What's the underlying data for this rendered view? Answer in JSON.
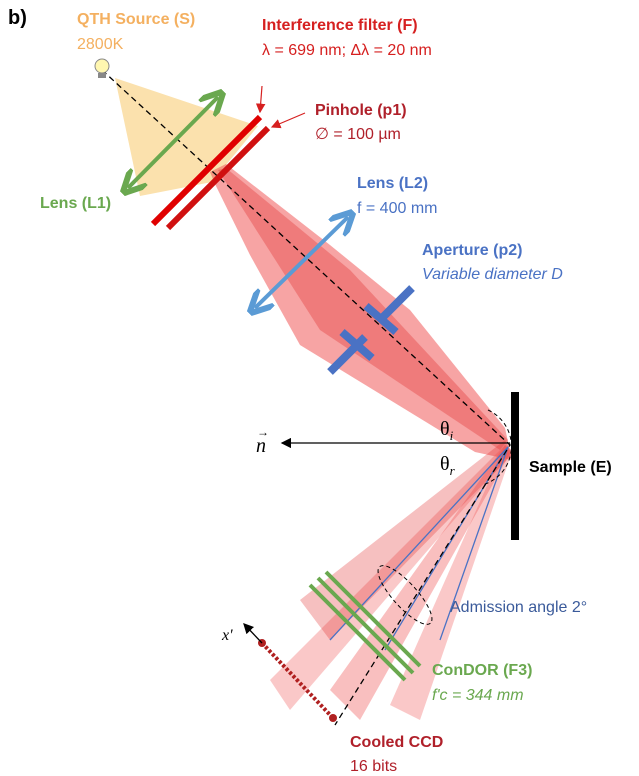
{
  "panel_label": "b)",
  "source": {
    "title": "QTH Source (S)",
    "detail": "2800K"
  },
  "filter": {
    "title": "Interference filter (F)",
    "detail": "λ = 699 nm; Δλ = 20 nm"
  },
  "pinhole": {
    "title": "Pinhole (p1)",
    "detail": "∅ = 100 µm"
  },
  "lens1": {
    "title": "Lens (L1)"
  },
  "lens2": {
    "title": "Lens (L2)",
    "detail": "f = 400 mm"
  },
  "aperture": {
    "title": "Aperture (p2)",
    "detail": "Variable diameter D"
  },
  "normal": {
    "symbol": "n"
  },
  "theta_i": {
    "symbol": "θ",
    "sub": "i"
  },
  "theta_r": {
    "symbol": "θ",
    "sub": "r"
  },
  "sample": {
    "title": "Sample (E)"
  },
  "admission": {
    "title": "Admission angle 2°"
  },
  "condor": {
    "title": "ConDOR (F3)",
    "detail": "f'c = 344 mm"
  },
  "ccd_axis": {
    "label": "x'"
  },
  "ccd": {
    "title": "Cooled CCD",
    "detail": "16 bits"
  }
}
